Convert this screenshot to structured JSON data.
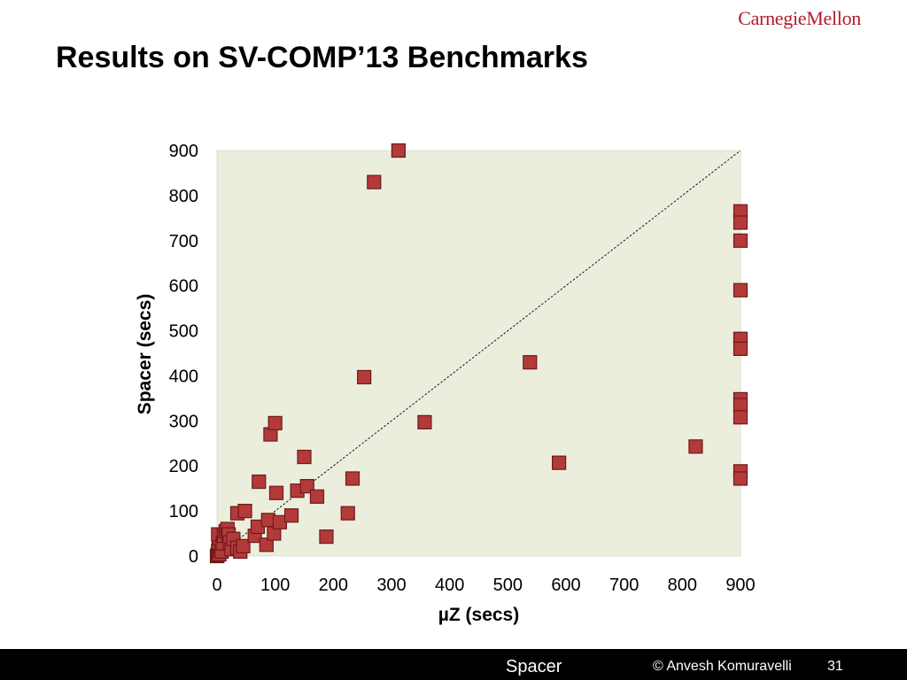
{
  "header": {
    "logo_text": "CarnegieMellon",
    "title": "Results on SV-COMP’13 Benchmarks"
  },
  "footer": {
    "center_text": "Spacer",
    "copyright": "© Anvesh Komuravelli",
    "page_number": "31"
  },
  "colors": {
    "plot_background": "#ebeedd",
    "marker_fill": "#b43a3a",
    "marker_border": "#6e1a1a",
    "footer_background": "#000000",
    "logo": "#b01c2e"
  },
  "chart_data": {
    "type": "scatter",
    "title": "",
    "xlabel": "µZ (secs)",
    "ylabel": "Spacer (secs)",
    "xlim": [
      0,
      900
    ],
    "ylim": [
      0,
      900
    ],
    "x_ticks": [
      "0",
      "100",
      "200",
      "300",
      "400",
      "500",
      "600",
      "700",
      "800",
      "900"
    ],
    "y_ticks": [
      "0",
      "100",
      "200",
      "300",
      "400",
      "500",
      "600",
      "700",
      "800",
      "900"
    ],
    "grid": false,
    "legend": false,
    "diagonal_reference_line": true,
    "points": [
      [
        0,
        0
      ],
      [
        1,
        2
      ],
      [
        2,
        5
      ],
      [
        3,
        8
      ],
      [
        2,
        12
      ],
      [
        4,
        4
      ],
      [
        5,
        15
      ],
      [
        6,
        22
      ],
      [
        3,
        30
      ],
      [
        4,
        40
      ],
      [
        2,
        48
      ],
      [
        8,
        10
      ],
      [
        10,
        28
      ],
      [
        12,
        45
      ],
      [
        15,
        55
      ],
      [
        18,
        60
      ],
      [
        20,
        48
      ],
      [
        22,
        30
      ],
      [
        25,
        15
      ],
      [
        28,
        38
      ],
      [
        35,
        18
      ],
      [
        40,
        10
      ],
      [
        45,
        22
      ],
      [
        35,
        95
      ],
      [
        48,
        100
      ],
      [
        65,
        45
      ],
      [
        70,
        65
      ],
      [
        72,
        165
      ],
      [
        85,
        25
      ],
      [
        88,
        80
      ],
      [
        92,
        270
      ],
      [
        98,
        50
      ],
      [
        100,
        295
      ],
      [
        102,
        140
      ],
      [
        108,
        75
      ],
      [
        128,
        90
      ],
      [
        138,
        145
      ],
      [
        150,
        220
      ],
      [
        155,
        155
      ],
      [
        172,
        132
      ],
      [
        188,
        43
      ],
      [
        225,
        95
      ],
      [
        233,
        172
      ],
      [
        253,
        397
      ],
      [
        270,
        830
      ],
      [
        312,
        900
      ],
      [
        357,
        297
      ],
      [
        538,
        430
      ],
      [
        588,
        207
      ],
      [
        823,
        243
      ],
      [
        900,
        765
      ],
      [
        900,
        740
      ],
      [
        900,
        700
      ],
      [
        900,
        590
      ],
      [
        900,
        482
      ],
      [
        900,
        460
      ],
      [
        900,
        348
      ],
      [
        900,
        335
      ],
      [
        900,
        308
      ],
      [
        900,
        188
      ],
      [
        900,
        172
      ]
    ]
  }
}
